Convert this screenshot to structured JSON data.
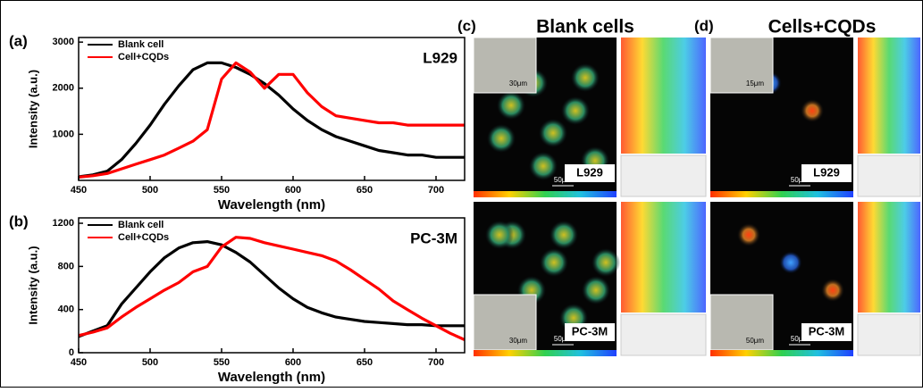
{
  "chart_data": [
    {
      "type": "line",
      "panel_label": "(a)",
      "annotation": "L929",
      "x_label": "Wavelength (nm)",
      "y_label": "Intensity (a.u.)",
      "x": [
        450,
        460,
        470,
        480,
        490,
        500,
        510,
        520,
        530,
        540,
        550,
        560,
        570,
        580,
        590,
        600,
        610,
        620,
        630,
        640,
        650,
        660,
        670,
        680,
        690,
        700,
        710,
        720
      ],
      "series": [
        {
          "name": "Blank cell",
          "color": "#000000",
          "values": [
            80,
            120,
            200,
            450,
            800,
            1200,
            1650,
            2050,
            2400,
            2550,
            2550,
            2450,
            2300,
            2100,
            1850,
            1550,
            1300,
            1100,
            950,
            850,
            750,
            650,
            600,
            550,
            550,
            500,
            500,
            500
          ]
        },
        {
          "name": "Cell+CQDs",
          "color": "#ff0000",
          "values": [
            70,
            100,
            150,
            250,
            350,
            450,
            550,
            700,
            850,
            1100,
            2200,
            2550,
            2350,
            2000,
            2300,
            2300,
            1900,
            1600,
            1400,
            1350,
            1300,
            1250,
            1250,
            1200,
            1200,
            1200,
            1200,
            1200
          ]
        }
      ],
      "xlim": [
        450,
        720
      ],
      "xticks": [
        450,
        500,
        550,
        600,
        650,
        700
      ],
      "ylim": [
        0,
        3100
      ],
      "yticks": [
        1000,
        2000,
        3000
      ],
      "legend": "upper left"
    },
    {
      "type": "line",
      "panel_label": "(b)",
      "annotation": "PC-3M",
      "x_label": "Wavelength (nm)",
      "y_label": "Intensity (a.u.)",
      "x": [
        450,
        460,
        470,
        480,
        490,
        500,
        510,
        520,
        530,
        540,
        550,
        560,
        570,
        580,
        590,
        600,
        610,
        620,
        630,
        640,
        650,
        660,
        670,
        680,
        690,
        700,
        710,
        720
      ],
      "series": [
        {
          "name": "Blank cell",
          "color": "#000000",
          "values": [
            150,
            200,
            250,
            450,
            600,
            750,
            880,
            970,
            1020,
            1030,
            1000,
            930,
            840,
            720,
            600,
            500,
            420,
            370,
            330,
            310,
            290,
            280,
            270,
            260,
            260,
            250,
            250,
            250
          ]
        },
        {
          "name": "Cell+CQDs",
          "color": "#ff0000",
          "values": [
            160,
            190,
            230,
            330,
            420,
            500,
            580,
            650,
            750,
            800,
            980,
            1070,
            1060,
            1020,
            990,
            960,
            930,
            900,
            850,
            770,
            680,
            590,
            480,
            400,
            320,
            250,
            180,
            120
          ]
        }
      ],
      "xlim": [
        450,
        720
      ],
      "xticks": [
        450,
        500,
        550,
        600,
        650,
        700
      ],
      "ylim": [
        0,
        1250
      ],
      "yticks": [
        0,
        400,
        800,
        1200
      ],
      "legend": "upper left"
    }
  ],
  "images": [
    {
      "panel_label": "(c)",
      "title": "Blank cells",
      "tiles": [
        {
          "label": "L929",
          "scale": "50μm",
          "inset_scale": "30μm"
        },
        {
          "label": "PC-3M",
          "scale": "50μm",
          "inset_scale": "30μm"
        }
      ]
    },
    {
      "panel_label": "(d)",
      "title": "Cells+CQDs",
      "tiles": [
        {
          "label": "L929",
          "scale": "50μm",
          "inset_scale": "15μm"
        },
        {
          "label": "PC-3M",
          "scale": "50μm",
          "inset_scale": "50μm"
        }
      ]
    }
  ]
}
